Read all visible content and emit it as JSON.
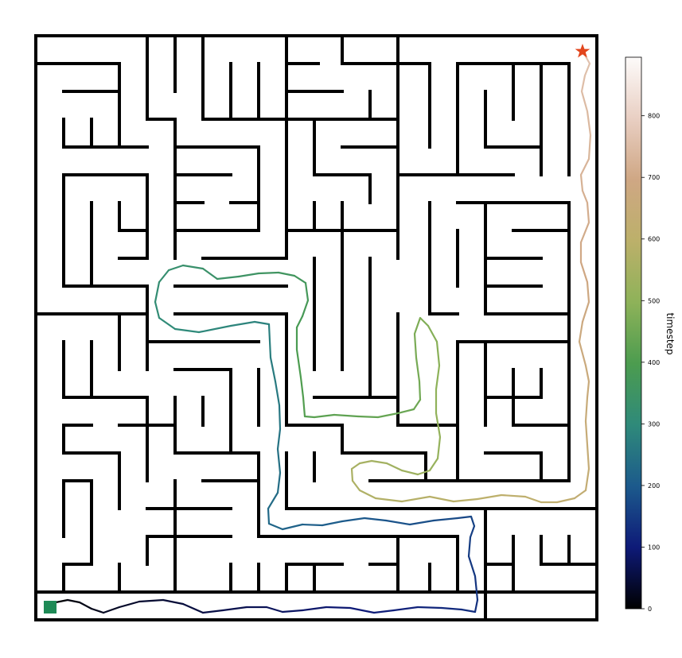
{
  "colorbar": {
    "label": "timestep",
    "ticks": [
      0,
      100,
      200,
      300,
      400,
      500,
      600,
      700,
      800
    ],
    "tick_labels": [
      "0",
      "100",
      "200",
      "300",
      "400",
      "500",
      "600",
      "700",
      "800"
    ],
    "min": 0,
    "max": 895,
    "colormap": "gist_earth",
    "colormap_stops": [
      "#000000",
      "#0e1a78",
      "#1c5a8c",
      "#2f8a7a",
      "#4c9c4f",
      "#8eb259",
      "#bcb06a",
      "#cfa784",
      "#e9cfc3",
      "#fdfbfa"
    ]
  },
  "maze": {
    "start_marker": "green-square",
    "start_color": "#1e8a56",
    "goal_marker": "star",
    "goal_color": "#e2461d",
    "wall_color": "#000000"
  },
  "trajectory": {
    "total_steps": 895
  }
}
